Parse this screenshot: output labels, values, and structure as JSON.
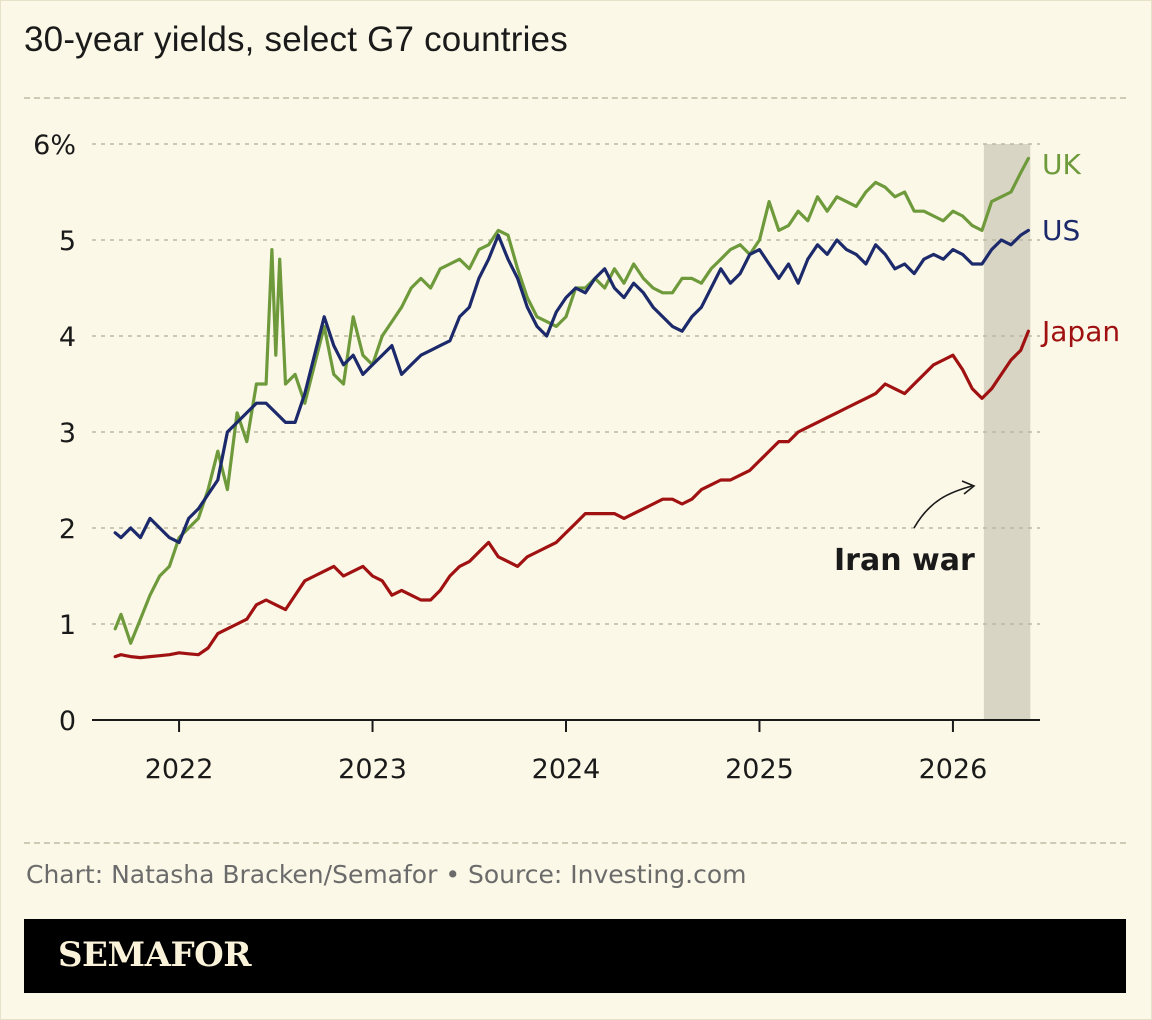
{
  "title": "30-year yields, select G7 countries",
  "credit": "Chart: Natasha Bracken/Semafor • Source: Investing.com",
  "brand": "SEMAFOR",
  "colors": {
    "background": "#fbf8e7",
    "uk": "#6e9a3c",
    "us": "#1c2a6b",
    "japan": "#a01212",
    "shade": "#d9d5c4"
  },
  "chart_data": {
    "type": "line",
    "title": "30-year yields, select G7 countries",
    "xlabel": "",
    "ylabel": "",
    "xlim": [
      2021.55,
      2026.45
    ],
    "ylim": [
      0,
      6
    ],
    "x_ticks": [
      {
        "value": 2022,
        "label": "2022"
      },
      {
        "value": 2023,
        "label": "2023"
      },
      {
        "value": 2024,
        "label": "2024"
      },
      {
        "value": 2025,
        "label": "2025"
      },
      {
        "value": 2026,
        "label": "2026"
      }
    ],
    "y_ticks": [
      {
        "value": 0,
        "label": "0"
      },
      {
        "value": 1,
        "label": "1"
      },
      {
        "value": 2,
        "label": "2"
      },
      {
        "value": 3,
        "label": "3"
      },
      {
        "value": 4,
        "label": "4"
      },
      {
        "value": 5,
        "label": "5"
      },
      {
        "value": 6,
        "label": "6%"
      }
    ],
    "grid": true,
    "legend": "inline labels at right end of each line",
    "shaded_region": {
      "x_start": 2026.16,
      "x_end": 2026.4,
      "label": "Iran war"
    },
    "series": [
      {
        "name": "UK",
        "color": "#6e9a3c",
        "x": [
          2021.67,
          2021.7,
          2021.75,
          2021.8,
          2021.85,
          2021.9,
          2021.95,
          2022.0,
          2022.05,
          2022.1,
          2022.15,
          2022.2,
          2022.25,
          2022.3,
          2022.35,
          2022.4,
          2022.45,
          2022.48,
          2022.5,
          2022.52,
          2022.55,
          2022.6,
          2022.65,
          2022.7,
          2022.75,
          2022.8,
          2022.85,
          2022.9,
          2022.95,
          2023.0,
          2023.05,
          2023.1,
          2023.15,
          2023.2,
          2023.25,
          2023.3,
          2023.35,
          2023.4,
          2023.45,
          2023.5,
          2023.55,
          2023.6,
          2023.65,
          2023.7,
          2023.75,
          2023.8,
          2023.85,
          2023.9,
          2023.95,
          2024.0,
          2024.05,
          2024.1,
          2024.15,
          2024.2,
          2024.25,
          2024.3,
          2024.35,
          2024.4,
          2024.45,
          2024.5,
          2024.55,
          2024.6,
          2024.65,
          2024.7,
          2024.75,
          2024.8,
          2024.85,
          2024.9,
          2024.95,
          2025.0,
          2025.05,
          2025.1,
          2025.15,
          2025.2,
          2025.25,
          2025.3,
          2025.35,
          2025.4,
          2025.45,
          2025.5,
          2025.55,
          2025.6,
          2025.65,
          2025.7,
          2025.75,
          2025.8,
          2025.85,
          2025.9,
          2025.95,
          2026.0,
          2026.05,
          2026.1,
          2026.15,
          2026.2,
          2026.25,
          2026.3,
          2026.35,
          2026.39
        ],
        "y": [
          0.95,
          1.1,
          0.8,
          1.05,
          1.3,
          1.5,
          1.6,
          1.9,
          2.0,
          2.1,
          2.4,
          2.8,
          2.4,
          3.2,
          2.9,
          3.5,
          3.5,
          4.9,
          3.8,
          4.8,
          3.5,
          3.6,
          3.3,
          3.7,
          4.1,
          3.6,
          3.5,
          4.2,
          3.8,
          3.7,
          4.0,
          4.15,
          4.3,
          4.5,
          4.6,
          4.5,
          4.7,
          4.75,
          4.8,
          4.7,
          4.9,
          4.95,
          5.1,
          5.05,
          4.7,
          4.4,
          4.2,
          4.15,
          4.1,
          4.2,
          4.5,
          4.5,
          4.6,
          4.5,
          4.7,
          4.55,
          4.75,
          4.6,
          4.5,
          4.45,
          4.45,
          4.6,
          4.6,
          4.55,
          4.7,
          4.8,
          4.9,
          4.95,
          4.85,
          5.0,
          5.4,
          5.1,
          5.15,
          5.3,
          5.2,
          5.45,
          5.3,
          5.45,
          5.4,
          5.35,
          5.5,
          5.6,
          5.55,
          5.45,
          5.5,
          5.3,
          5.3,
          5.25,
          5.2,
          5.3,
          5.25,
          5.15,
          5.1,
          5.4,
          5.45,
          5.5,
          5.7,
          5.85
        ]
      },
      {
        "name": "US",
        "color": "#1c2a6b",
        "x": [
          2021.67,
          2021.7,
          2021.75,
          2021.8,
          2021.85,
          2021.9,
          2021.95,
          2022.0,
          2022.05,
          2022.1,
          2022.15,
          2022.2,
          2022.25,
          2022.3,
          2022.35,
          2022.4,
          2022.45,
          2022.5,
          2022.55,
          2022.6,
          2022.65,
          2022.7,
          2022.75,
          2022.8,
          2022.85,
          2022.9,
          2022.95,
          2023.0,
          2023.05,
          2023.1,
          2023.15,
          2023.2,
          2023.25,
          2023.3,
          2023.35,
          2023.4,
          2023.45,
          2023.5,
          2023.55,
          2023.6,
          2023.65,
          2023.7,
          2023.75,
          2023.8,
          2023.85,
          2023.9,
          2023.95,
          2024.0,
          2024.05,
          2024.1,
          2024.15,
          2024.2,
          2024.25,
          2024.3,
          2024.35,
          2024.4,
          2024.45,
          2024.5,
          2024.55,
          2024.6,
          2024.65,
          2024.7,
          2024.75,
          2024.8,
          2024.85,
          2024.9,
          2024.95,
          2025.0,
          2025.05,
          2025.1,
          2025.15,
          2025.2,
          2025.25,
          2025.3,
          2025.35,
          2025.4,
          2025.45,
          2025.5,
          2025.55,
          2025.6,
          2025.65,
          2025.7,
          2025.75,
          2025.8,
          2025.85,
          2025.9,
          2025.95,
          2026.0,
          2026.05,
          2026.1,
          2026.15,
          2026.2,
          2026.25,
          2026.3,
          2026.35,
          2026.39
        ],
        "y": [
          1.95,
          1.9,
          2.0,
          1.9,
          2.1,
          2.0,
          1.9,
          1.85,
          2.1,
          2.2,
          2.35,
          2.5,
          3.0,
          3.1,
          3.2,
          3.3,
          3.3,
          3.2,
          3.1,
          3.1,
          3.4,
          3.8,
          4.2,
          3.9,
          3.7,
          3.8,
          3.6,
          3.7,
          3.8,
          3.9,
          3.6,
          3.7,
          3.8,
          3.85,
          3.9,
          3.95,
          4.2,
          4.3,
          4.6,
          4.8,
          5.05,
          4.8,
          4.6,
          4.3,
          4.1,
          4.0,
          4.25,
          4.4,
          4.5,
          4.45,
          4.6,
          4.7,
          4.5,
          4.4,
          4.55,
          4.45,
          4.3,
          4.2,
          4.1,
          4.05,
          4.2,
          4.3,
          4.5,
          4.7,
          4.55,
          4.65,
          4.85,
          4.9,
          4.75,
          4.6,
          4.75,
          4.55,
          4.8,
          4.95,
          4.85,
          5.0,
          4.9,
          4.85,
          4.75,
          4.95,
          4.85,
          4.7,
          4.75,
          4.65,
          4.8,
          4.85,
          4.8,
          4.9,
          4.85,
          4.75,
          4.75,
          4.9,
          5.0,
          4.95,
          5.05,
          5.1
        ]
      },
      {
        "name": "Japan",
        "color": "#a01212",
        "x": [
          2021.67,
          2021.7,
          2021.75,
          2021.8,
          2021.85,
          2021.9,
          2021.95,
          2022.0,
          2022.05,
          2022.1,
          2022.15,
          2022.2,
          2022.25,
          2022.3,
          2022.35,
          2022.4,
          2022.45,
          2022.5,
          2022.55,
          2022.6,
          2022.65,
          2022.7,
          2022.75,
          2022.8,
          2022.85,
          2022.9,
          2022.95,
          2023.0,
          2023.05,
          2023.1,
          2023.15,
          2023.2,
          2023.25,
          2023.3,
          2023.35,
          2023.4,
          2023.45,
          2023.5,
          2023.55,
          2023.6,
          2023.65,
          2023.7,
          2023.75,
          2023.8,
          2023.85,
          2023.9,
          2023.95,
          2024.0,
          2024.05,
          2024.1,
          2024.15,
          2024.2,
          2024.25,
          2024.3,
          2024.35,
          2024.4,
          2024.45,
          2024.5,
          2024.55,
          2024.6,
          2024.65,
          2024.7,
          2024.75,
          2024.8,
          2024.85,
          2024.9,
          2024.95,
          2025.0,
          2025.05,
          2025.1,
          2025.15,
          2025.2,
          2025.25,
          2025.3,
          2025.35,
          2025.4,
          2025.45,
          2025.5,
          2025.55,
          2025.6,
          2025.65,
          2025.7,
          2025.75,
          2025.8,
          2025.85,
          2025.9,
          2025.95,
          2026.0,
          2026.05,
          2026.1,
          2026.15,
          2026.2,
          2026.25,
          2026.3,
          2026.35,
          2026.39
        ],
        "y": [
          0.66,
          0.68,
          0.66,
          0.65,
          0.66,
          0.67,
          0.68,
          0.7,
          0.69,
          0.68,
          0.75,
          0.9,
          0.95,
          1.0,
          1.05,
          1.2,
          1.25,
          1.2,
          1.15,
          1.3,
          1.45,
          1.5,
          1.55,
          1.6,
          1.5,
          1.55,
          1.6,
          1.5,
          1.45,
          1.3,
          1.35,
          1.3,
          1.25,
          1.25,
          1.35,
          1.5,
          1.6,
          1.65,
          1.75,
          1.85,
          1.7,
          1.65,
          1.6,
          1.7,
          1.75,
          1.8,
          1.85,
          1.95,
          2.05,
          2.15,
          2.15,
          2.15,
          2.15,
          2.1,
          2.15,
          2.2,
          2.25,
          2.3,
          2.3,
          2.25,
          2.3,
          2.4,
          2.45,
          2.5,
          2.5,
          2.55,
          2.6,
          2.7,
          2.8,
          2.9,
          2.9,
          3.0,
          3.05,
          3.1,
          3.15,
          3.2,
          3.25,
          3.3,
          3.35,
          3.4,
          3.5,
          3.45,
          3.4,
          3.5,
          3.6,
          3.7,
          3.75,
          3.8,
          3.65,
          3.45,
          3.35,
          3.45,
          3.6,
          3.75,
          3.85,
          4.05
        ]
      }
    ]
  }
}
